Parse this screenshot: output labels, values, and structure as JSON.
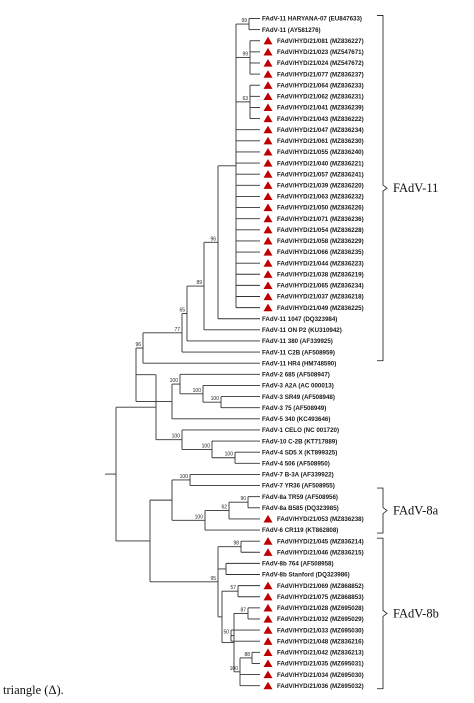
{
  "leaves": [
    {
      "label": "FAdV-11 HARYANA-07 (EU847633)",
      "marker": false
    },
    {
      "label": "FAdV-11 (AY581276)",
      "marker": false
    },
    {
      "label": "FAdV/HYD/21/081 (MZ836227)",
      "marker": true
    },
    {
      "label": "FAdV/HYD/21/023 (MZ547671)",
      "marker": true
    },
    {
      "label": "FAdV/HYD/21/024 (MZ547672)",
      "marker": true
    },
    {
      "label": "FAdV/HYD/21/077 (MZ836237)",
      "marker": true
    },
    {
      "label": "FAdV/HYD/21/064 (MZ836233)",
      "marker": true
    },
    {
      "label": "FAdV/HYD/21/062 (MZ836231)",
      "marker": true
    },
    {
      "label": "FAdV/HYD/21/041 (MZ836239)",
      "marker": true
    },
    {
      "label": "FAdV/HYD/21/043 (MZ836222)",
      "marker": true
    },
    {
      "label": "FAdV/HYD/21/047 (MZ836234)",
      "marker": true
    },
    {
      "label": "FAdV/HYD/21/061 (MZ836230)",
      "marker": true
    },
    {
      "label": "FAdV/HYD/21/055 (MZ836240)",
      "marker": true
    },
    {
      "label": "FAdV/HYD/21/040 (MZ836221)",
      "marker": true
    },
    {
      "label": "FAdV/HYD/21/057 (MZ836241)",
      "marker": true
    },
    {
      "label": "FAdV/HYD/21/039 (MZ836220)",
      "marker": true
    },
    {
      "label": "FAdV/HYD/21/063 (MZ836232)",
      "marker": true
    },
    {
      "label": "FAdV/HYD/21/050 (MZ836226)",
      "marker": true
    },
    {
      "label": "FAdV/HYD/21/071 (MZ836236)",
      "marker": true
    },
    {
      "label": "FAdV/HYD/21/054 (MZ836228)",
      "marker": true
    },
    {
      "label": "FAdV/HYD/21/058 (MZ836229)",
      "marker": true
    },
    {
      "label": "FAdV/HYD/21/066 (MZ836235)",
      "marker": true
    },
    {
      "label": "FAdV/HYD/21/044 (MZ836223)",
      "marker": true
    },
    {
      "label": "FAdV/HYD/21/038 (MZ836219)",
      "marker": true
    },
    {
      "label": "FAdV/HYD/21/065 (MZ836234)",
      "marker": true
    },
    {
      "label": "FAdV/HYD/21/037 (MZ836218)",
      "marker": true
    },
    {
      "label": "FAdV/HYD/21/049 (MZ836225)",
      "marker": true
    },
    {
      "label": "FAdV-11 1047 (DQ323984)",
      "marker": false
    },
    {
      "label": "FAdV-11 ON P2 (KU310942)",
      "marker": false
    },
    {
      "label": "FAdV-11 380 (AF339925)",
      "marker": false
    },
    {
      "label": "FAdV-11 C2B (AF508959)",
      "marker": false
    },
    {
      "label": "FAdV-11 HR4 (HM748590)",
      "marker": false
    },
    {
      "label": "FAdV-2 685 (AF508947)",
      "marker": false
    },
    {
      "label": "FAdV-3 A2A (AC 000013)",
      "marker": false
    },
    {
      "label": "FAdV-3 SR49 (AF508948)",
      "marker": false
    },
    {
      "label": "FAdV-3 75 (AF508949)",
      "marker": false
    },
    {
      "label": "FAdV-5 340 (KC493646)",
      "marker": false
    },
    {
      "label": "FAdV-1 CELO (NC 001720)",
      "marker": false
    },
    {
      "label": "FAdV-10 C-2B (KT717889)",
      "marker": false
    },
    {
      "label": "FAdV-4 SD5 X (KT899325)",
      "marker": false
    },
    {
      "label": "FAdV-4 506 (AF508950)",
      "marker": false
    },
    {
      "label": "FAdV-7 B-3A (AF339922)",
      "marker": false
    },
    {
      "label": "FAdV-7 YR36 (AF508955)",
      "marker": false
    },
    {
      "label": "FAdV-8a TR59 (AF508956)",
      "marker": false
    },
    {
      "label": "FAdV-8a B585 (DQ323985)",
      "marker": false
    },
    {
      "label": "FAdV/HYD/21/053 (MZ836238)",
      "marker": true
    },
    {
      "label": "FAdV-6 CR119 (KT862808)",
      "marker": false
    },
    {
      "label": "FAdV/HYD/21/045 (MZ836214)",
      "marker": true
    },
    {
      "label": "FAdV/HYD/21/046 (MZ836215)",
      "marker": true
    },
    {
      "label": "FAdV-8b 764 (AF508958)",
      "marker": false
    },
    {
      "label": "FAdV-8b Stanford (DQ323986)",
      "marker": false
    },
    {
      "label": "FAdV/HYD/21/069 (MZ868852)",
      "marker": true
    },
    {
      "label": "FAdV/HYD/21/075 (MZ868853)",
      "marker": true
    },
    {
      "label": "FAdV/HYD/21/028 (MZ695028)",
      "marker": true
    },
    {
      "label": "FAdV/HYD/21/032 (MZ695029)",
      "marker": true
    },
    {
      "label": "FAdV/HYD/21/033 (MZ695030)",
      "marker": true
    },
    {
      "label": "FAdV/HYD/21/048 (MZ836216)",
      "marker": true
    },
    {
      "label": "FAdV/HYD/21/042 (MZ836213)",
      "marker": true
    },
    {
      "label": "FAdV/HYD/21/035 (MZ695031)",
      "marker": true
    },
    {
      "label": "FAdV/HYD/21/034 (MZ695030)",
      "marker": true
    },
    {
      "label": "FAdV/HYD/21/036 (MZ695032)",
      "marker": true
    }
  ],
  "groups": [
    {
      "label": "FAdV-11"
    },
    {
      "label": "FAdV-8a"
    },
    {
      "label": "FAdV-8b"
    }
  ],
  "bootstrap": [
    "99",
    "99",
    "63",
    "96",
    "89",
    "65",
    "100",
    "77",
    "96",
    "100",
    "100",
    "100",
    "100",
    "100",
    "100",
    "90",
    "62",
    "100",
    "98",
    "95",
    "57",
    "87",
    "50",
    "88",
    "100"
  ],
  "footer": {
    "text": "triangle (Δ)."
  },
  "colors": {
    "marker": "#c00000",
    "lines": "#333333"
  }
}
